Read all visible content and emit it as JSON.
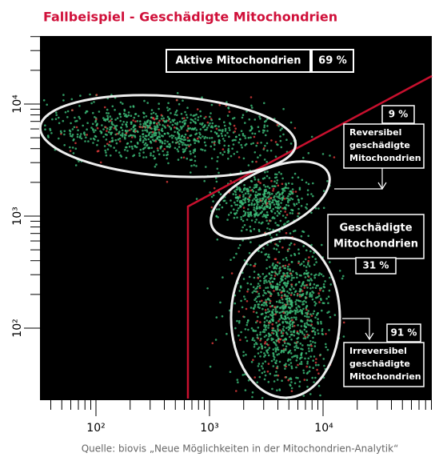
{
  "title": "Fallbeispiel - Geschädigte Mitochondrien",
  "y_axis": {
    "labels": [
      "10⁴",
      "10³",
      "10²"
    ]
  },
  "x_axis": {
    "labels": [
      "10²",
      "10³",
      "10⁴"
    ]
  },
  "annotations": {
    "active": {
      "label": "Aktive Mitochondrien",
      "percent": "69 %"
    },
    "reversible": {
      "percent": "9 %",
      "lines": [
        "Reversibel",
        "geschädigte",
        "Mitochondrien"
      ]
    },
    "damaged": {
      "lines": [
        "Geschädigte",
        "Mitochondrien"
      ],
      "percent": "31 %"
    },
    "irreversible": {
      "percent": "91 %",
      "lines": [
        "Irreversibel",
        "geschädigte",
        "Mitochondrien"
      ]
    }
  },
  "source": "Quelle: biovis „Neue Möglichkeiten in der Mitochondrien-Analytik“"
}
